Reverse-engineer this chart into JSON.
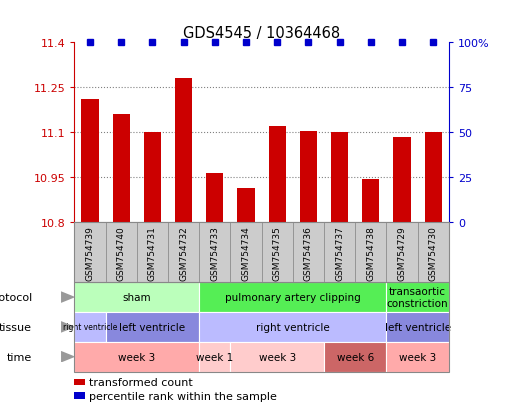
{
  "title": "GDS4545 / 10364468",
  "samples": [
    "GSM754739",
    "GSM754740",
    "GSM754731",
    "GSM754732",
    "GSM754733",
    "GSM754734",
    "GSM754735",
    "GSM754736",
    "GSM754737",
    "GSM754738",
    "GSM754729",
    "GSM754730"
  ],
  "bar_values": [
    11.21,
    11.16,
    11.1,
    11.28,
    10.965,
    10.915,
    11.12,
    11.105,
    11.1,
    10.945,
    11.085,
    11.1
  ],
  "bar_color": "#cc0000",
  "dot_color": "#0000cc",
  "ylim_left": [
    10.8,
    11.4
  ],
  "ylim_right": [
    0,
    100
  ],
  "yticks_left": [
    10.8,
    10.95,
    11.1,
    11.25,
    11.4
  ],
  "ytick_labels_left": [
    "10.8",
    "10.95",
    "11.1",
    "11.25",
    "11.4"
  ],
  "yticks_right": [
    0,
    25,
    50,
    75,
    100
  ],
  "ytick_labels_right": [
    "0",
    "25",
    "50",
    "75",
    "100%"
  ],
  "grid_values": [
    10.95,
    11.1,
    11.25
  ],
  "protocol_groups": [
    {
      "label": "sham",
      "start": 0,
      "end": 3,
      "color": "#bbffbb"
    },
    {
      "label": "pulmonary artery clipping",
      "start": 4,
      "end": 9,
      "color": "#55ee55"
    },
    {
      "label": "transaortic\nconstriction",
      "start": 10,
      "end": 11,
      "color": "#55ee55"
    }
  ],
  "tissue_groups": [
    {
      "label": "right ventricle",
      "start": 0,
      "end": 0,
      "color": "#bbbbff"
    },
    {
      "label": "left ventricle",
      "start": 1,
      "end": 3,
      "color": "#8888dd"
    },
    {
      "label": "right ventricle",
      "start": 4,
      "end": 9,
      "color": "#bbbbff"
    },
    {
      "label": "left ventricle",
      "start": 10,
      "end": 11,
      "color": "#8888dd"
    }
  ],
  "time_groups": [
    {
      "label": "week 3",
      "start": 0,
      "end": 3,
      "color": "#ffaaaa"
    },
    {
      "label": "week 1",
      "start": 4,
      "end": 4,
      "color": "#ffcccc"
    },
    {
      "label": "week 3",
      "start": 5,
      "end": 7,
      "color": "#ffcccc"
    },
    {
      "label": "week 6",
      "start": 8,
      "end": 9,
      "color": "#cc6666"
    },
    {
      "label": "week 3",
      "start": 10,
      "end": 11,
      "color": "#ffaaaa"
    }
  ],
  "row_labels": [
    "protocol",
    "tissue",
    "time"
  ],
  "legend_items": [
    {
      "label": "transformed count",
      "color": "#cc0000"
    },
    {
      "label": "percentile rank within the sample",
      "color": "#0000cc"
    }
  ],
  "sample_box_color": "#cccccc",
  "sample_box_edge": "#888888"
}
